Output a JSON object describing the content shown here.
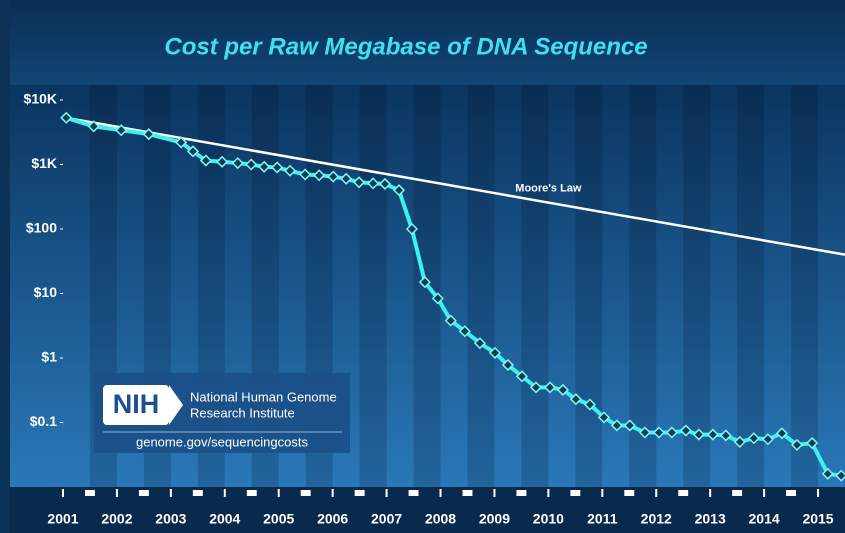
{
  "chart_data": {
    "type": "line",
    "title": "Cost per Raw Megabase of DNA Sequence",
    "log_scale": true,
    "xlim": [
      2001,
      2015.5
    ],
    "xticks": [
      2001,
      2002,
      2003,
      2004,
      2005,
      2006,
      2007,
      2008,
      2009,
      2010,
      2011,
      2012,
      2013,
      2014,
      2015
    ],
    "ylim": [
      0.01,
      10000
    ],
    "yticks": [
      {
        "value": 10000,
        "label": "$10K"
      },
      {
        "value": 1000,
        "label": "$1K"
      },
      {
        "value": 100,
        "label": "$100"
      },
      {
        "value": 10,
        "label": "$10"
      },
      {
        "value": 1,
        "label": "$1"
      },
      {
        "value": 0.1,
        "label": "$0.1"
      }
    ],
    "series": [
      {
        "color": "#3ff0f0",
        "x": [
          2001.06,
          2001.57,
          2002.08,
          2002.59,
          2003.19,
          2003.41,
          2003.65,
          2003.95,
          2004.24,
          2004.49,
          2004.73,
          2004.97,
          2005.21,
          2005.49,
          2005.75,
          2006.01,
          2006.25,
          2006.49,
          2006.75,
          2006.97,
          2007.23,
          2007.47,
          2007.71,
          2007.95,
          2008.19,
          2008.45,
          2008.73,
          2009.01,
          2009.25,
          2009.51,
          2009.77,
          2010.03,
          2010.27,
          2010.51,
          2010.77,
          2011.03,
          2011.27,
          2011.51,
          2011.79,
          2012.05,
          2012.29,
          2012.55,
          2012.79,
          2013.05,
          2013.29,
          2013.55,
          2013.81,
          2014.07,
          2014.33,
          2014.61,
          2014.89,
          2015.18,
          2015.43
        ],
        "values": [
          5300,
          3900,
          3400,
          2950,
          2200,
          1600,
          1150,
          1100,
          1050,
          1000,
          920,
          900,
          800,
          700,
          680,
          650,
          600,
          530,
          510,
          500,
          400,
          100,
          15,
          8.4,
          3.8,
          2.6,
          1.7,
          1.2,
          0.78,
          0.52,
          0.35,
          0.35,
          0.32,
          0.23,
          0.19,
          0.12,
          0.09,
          0.09,
          0.07,
          0.07,
          0.07,
          0.075,
          0.065,
          0.065,
          0.063,
          0.05,
          0.057,
          0.055,
          0.068,
          0.045,
          0.048,
          0.016,
          0.015
        ]
      },
      {
        "name": "Moore's Law",
        "color": "#ffffff",
        "x": [
          2001.06,
          2015.5
        ],
        "values": [
          5300,
          40
        ]
      }
    ]
  },
  "logo": {
    "mark": "NIH",
    "line1": "National Human Genome",
    "line2": "Research Institute",
    "url": "genome.gov/sequencingcosts"
  }
}
